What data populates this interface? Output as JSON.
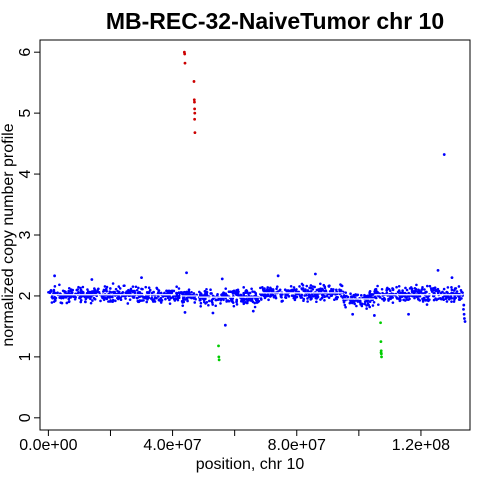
{
  "chart_data": {
    "type": "scatter",
    "title": "MB-REC-32-NaiveTumor chr 10",
    "xlabel": "position, chr 10",
    "ylabel": "normalized copy number profile",
    "xlim": [
      -2700000,
      135800000
    ],
    "ylim": [
      -0.2,
      6.2
    ],
    "x_ticks": [
      {
        "value": 0,
        "label": "0.0e+00"
      },
      {
        "value": 40000000,
        "label": "4.0e+07"
      },
      {
        "value": 80000000,
        "label": "8.0e+07"
      },
      {
        "value": 120000000,
        "label": "1.2e+08"
      }
    ],
    "x_minor_ticks": [
      20000000,
      60000000,
      100000000
    ],
    "y_ticks": [
      {
        "value": 0,
        "label": "0"
      },
      {
        "value": 1,
        "label": "1"
      },
      {
        "value": 2,
        "label": "2"
      },
      {
        "value": 3,
        "label": "3"
      },
      {
        "value": 4,
        "label": "4"
      },
      {
        "value": 5,
        "label": "5"
      },
      {
        "value": 6,
        "label": "6"
      }
    ],
    "grid": false,
    "colors": {
      "normal": "#0000ff",
      "gain": "#cc0000",
      "loss": "#00cc00",
      "segment": "#ffffff"
    },
    "series": [
      {
        "class": "normal",
        "color": "#0000ff",
        "bands": [
          {
            "x": [
              0,
              42500000
            ],
            "center": 2.02,
            "spread": 0.09,
            "n": 400
          },
          {
            "x": [
              42600000,
              48000000
            ],
            "center": 2.0,
            "spread": 0.09,
            "n": 50
          },
          {
            "x": [
              48500000,
              68000000
            ],
            "center": 1.98,
            "spread": 0.09,
            "n": 190
          },
          {
            "x": [
              68000000,
              95000000
            ],
            "center": 2.05,
            "spread": 0.09,
            "n": 260
          },
          {
            "x": [
              95000000,
              105000000
            ],
            "center": 1.95,
            "spread": 0.09,
            "n": 95
          },
          {
            "x": [
              105000000,
              133500000
            ],
            "center": 2.02,
            "spread": 0.09,
            "n": 280
          }
        ],
        "points": [
          {
            "x": 2000000,
            "y": 2.33
          },
          {
            "x": 14000000,
            "y": 2.27
          },
          {
            "x": 30000000,
            "y": 2.3
          },
          {
            "x": 44500000,
            "y": 2.38
          },
          {
            "x": 44000000,
            "y": 1.73
          },
          {
            "x": 53000000,
            "y": 1.72
          },
          {
            "x": 57000000,
            "y": 1.52
          },
          {
            "x": 56000000,
            "y": 2.28
          },
          {
            "x": 66000000,
            "y": 1.75
          },
          {
            "x": 74000000,
            "y": 2.33
          },
          {
            "x": 86000000,
            "y": 2.36
          },
          {
            "x": 98000000,
            "y": 1.7
          },
          {
            "x": 105000000,
            "y": 1.68
          },
          {
            "x": 116000000,
            "y": 1.7
          },
          {
            "x": 125500000,
            "y": 2.42
          },
          {
            "x": 130000000,
            "y": 2.3
          },
          {
            "x": 133700000,
            "y": 1.78
          },
          {
            "x": 133900000,
            "y": 1.7
          },
          {
            "x": 134000000,
            "y": 1.63
          },
          {
            "x": 134200000,
            "y": 1.58
          },
          {
            "x": 133800000,
            "y": 1.85
          },
          {
            "x": 127500000,
            "y": 4.32
          }
        ]
      },
      {
        "class": "gain",
        "color": "#cc0000",
        "points": [
          {
            "x": 43800000,
            "y": 6.0
          },
          {
            "x": 43900000,
            "y": 5.97
          },
          {
            "x": 44000000,
            "y": 5.82
          },
          {
            "x": 46900000,
            "y": 5.52
          },
          {
            "x": 47000000,
            "y": 5.22
          },
          {
            "x": 47050000,
            "y": 5.18
          },
          {
            "x": 47100000,
            "y": 5.07
          },
          {
            "x": 47150000,
            "y": 5.0
          },
          {
            "x": 47100000,
            "y": 4.9
          },
          {
            "x": 47200000,
            "y": 4.68
          }
        ]
      },
      {
        "class": "loss",
        "color": "#00cc00",
        "points": [
          {
            "x": 54800000,
            "y": 1.18
          },
          {
            "x": 54900000,
            "y": 1.0
          },
          {
            "x": 55000000,
            "y": 0.95
          },
          {
            "x": 107000000,
            "y": 1.56
          },
          {
            "x": 107100000,
            "y": 1.25
          },
          {
            "x": 107200000,
            "y": 1.1
          },
          {
            "x": 107150000,
            "y": 1.07
          },
          {
            "x": 107250000,
            "y": 1.05
          },
          {
            "x": 107300000,
            "y": 1.0
          }
        ]
      }
    ],
    "segments": [
      {
        "x": [
          0,
          41000000
        ],
        "y": 2.02
      },
      {
        "x": [
          42500000,
          48000000
        ],
        "y": 2.0
      },
      {
        "x": [
          48500000,
          68000000
        ],
        "y": 1.98
      },
      {
        "x": [
          68000000,
          95000000
        ],
        "y": 2.05
      },
      {
        "x": [
          95000000,
          105000000
        ],
        "y": 1.95
      },
      {
        "x": [
          105000000,
          133500000
        ],
        "y": 2.02
      }
    ]
  }
}
